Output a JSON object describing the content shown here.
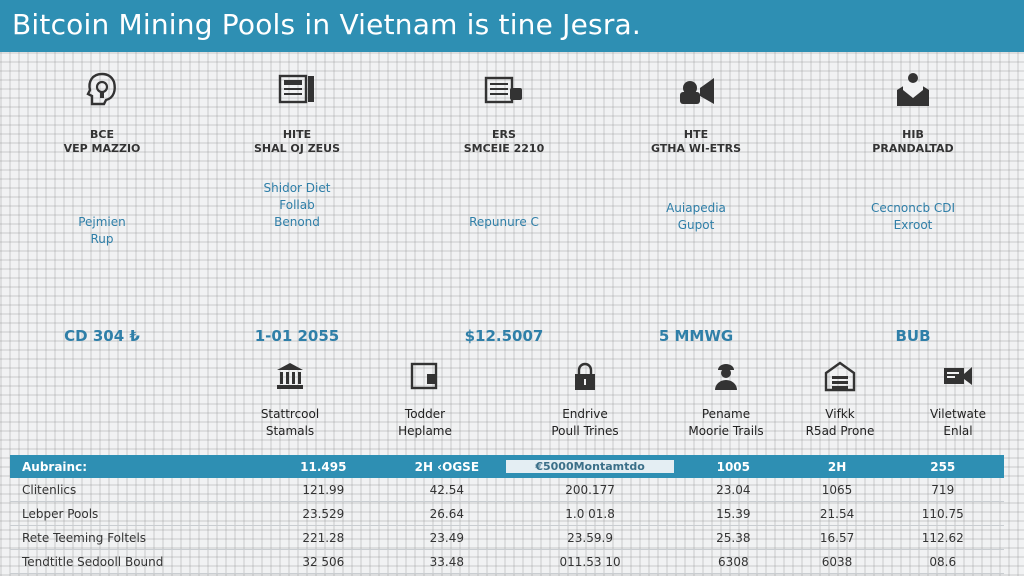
{
  "header": {
    "title": "Bitcoin Mining Pools in Vietnam is tine Jesra.",
    "bg_color": "#2e8fb3"
  },
  "top_columns": [
    {
      "icon": "bulb-head-icon",
      "code": "BCE",
      "sub": "VEP MAZZIO",
      "desc": [
        "Pejmien",
        "Rup"
      ],
      "value": "CD 304 ₺"
    },
    {
      "icon": "server-rack-icon",
      "code": "HITE",
      "sub": "SHAL OJ ZEUS",
      "desc": [
        "Shidor Diet",
        "Follab",
        "Benond"
      ],
      "value": "1-01 2055"
    },
    {
      "icon": "document-icon",
      "code": "ERS",
      "sub": "SMCEIE 2210",
      "desc": [
        "Repunure C"
      ],
      "value": "$12.5007"
    },
    {
      "icon": "video-camera-icon",
      "code": "HTE",
      "sub": "GTHA WI-ETRS",
      "desc": [
        "Auiapedia",
        "Gupot"
      ],
      "value": "5 MMWG"
    },
    {
      "icon": "envelope-icon",
      "code": "HIB",
      "sub": "PRANDALTAD",
      "desc": [
        "Cecnoncb CDI",
        "Exroot"
      ],
      "value": "BUB"
    }
  ],
  "bottom_columns": [
    {
      "icon": "bank-icon",
      "label": [
        "Stattrcool",
        "Stamals"
      ]
    },
    {
      "icon": "device-icon",
      "label": [
        "Todder",
        "Heplame"
      ]
    },
    {
      "icon": "lock-icon",
      "label": [
        "Endrive",
        "Poull Trines"
      ]
    },
    {
      "icon": "person-icon",
      "label": [
        "Pename",
        "Moorie Trails"
      ]
    },
    {
      "icon": "warehouse-icon",
      "label": [
        "Vifkk",
        "R5ad Prone"
      ]
    },
    {
      "icon": "camera-icon",
      "label": [
        "Viletwate",
        "Enlal"
      ]
    }
  ],
  "table": {
    "header": [
      "Aubrainc:",
      "11.495",
      "2H ‹OGSE",
      "€5000Montamtdo",
      "1005",
      "2H",
      "255"
    ],
    "rows": [
      [
        "Clitenlics",
        "121.99",
        "42.54",
        "200.177",
        "23.04",
        "1065",
        "719"
      ],
      [
        "Lebper Pools",
        "23.529",
        "26.64",
        "1.0 01.8",
        "15.39",
        "21.54",
        "110.75"
      ],
      [
        "Rete Teeming Foltels",
        "221.28",
        "23.49",
        "23.59.9",
        "25.38",
        "16.57",
        "112.62"
      ],
      [
        "Tendtitle Sedooll Bound",
        "32 506",
        "33.48",
        "011.53 10",
        "6308",
        "6038",
        "08.6"
      ]
    ]
  }
}
